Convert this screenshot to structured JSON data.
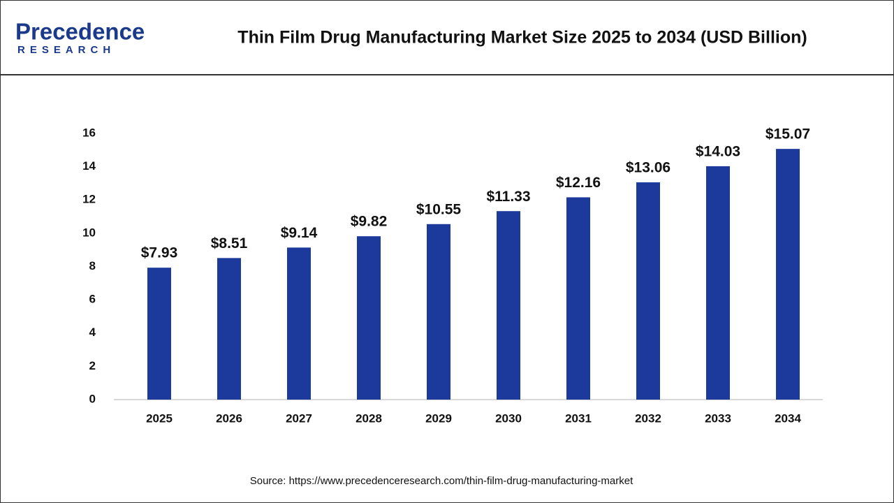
{
  "logo": {
    "name": "Precedence",
    "tagline": "RESEARCH"
  },
  "chart_data": {
    "type": "bar",
    "title": "Thin Film Drug Manufacturing Market Size 2025 to 2034 (USD Billion)",
    "categories": [
      "2025",
      "2026",
      "2027",
      "2028",
      "2029",
      "2030",
      "2031",
      "2032",
      "2033",
      "2034"
    ],
    "values": [
      7.93,
      8.51,
      9.14,
      9.82,
      10.55,
      11.33,
      12.16,
      13.06,
      14.03,
      15.07
    ],
    "value_labels": [
      "$7.93",
      "$8.51",
      "$9.14",
      "$9.82",
      "$10.55",
      "$11.33",
      "$12.16",
      "$13.06",
      "$14.03",
      "$15.07"
    ],
    "color": "#1b3a9c",
    "ylim": [
      0,
      16
    ],
    "yticks": [
      0,
      2,
      4,
      6,
      8,
      10,
      12,
      14,
      16
    ],
    "grid": false
  },
  "source": "Source: https://www.precedenceresearch.com/thin-film-drug-manufacturing-market"
}
